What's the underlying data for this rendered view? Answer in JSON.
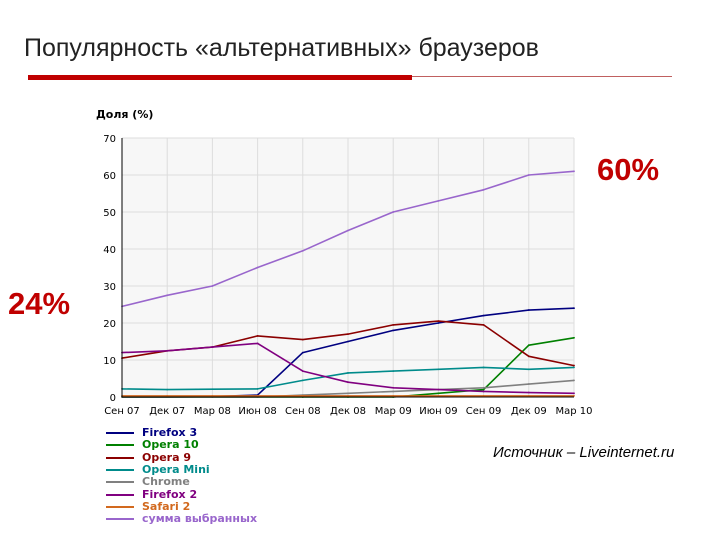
{
  "slide": {
    "title": "Популярность «альтернативных» браузеров",
    "callout_left": "24%",
    "callout_right": "60%",
    "source": "Источник – Liveinternet.ru"
  },
  "colors": {
    "accent": "#c00000",
    "callout": "#c00000",
    "grid": "#dddddd",
    "plot_bg": "#f7f7f7"
  },
  "chart_data": {
    "type": "line",
    "ylabel": "Доля (%)",
    "xlabel": "",
    "ylim": [
      0,
      70
    ],
    "yticks": [
      0,
      10,
      20,
      30,
      40,
      50,
      60,
      70
    ],
    "grid": true,
    "legend_position": "bottom",
    "x": [
      "Сен 07",
      "Дек 07",
      "Мар 08",
      "Июн 08",
      "Сен 08",
      "Дек 08",
      "Мар 09",
      "Июн 09",
      "Сен 09",
      "Дек 09",
      "Мар 10"
    ],
    "series": [
      {
        "name": "Firefox 3",
        "color": "#000080",
        "values": [
          0,
          0,
          0.1,
          0.5,
          12,
          15,
          18,
          20,
          22,
          23.5,
          24
        ]
      },
      {
        "name": "Opera 10",
        "color": "#008000",
        "values": [
          0,
          0,
          0,
          0,
          0,
          0,
          0,
          1,
          2,
          14,
          16
        ]
      },
      {
        "name": "Opera 9",
        "color": "#8b0000",
        "values": [
          10.5,
          12.5,
          13.5,
          16.5,
          15.5,
          17,
          19.5,
          20.5,
          19.5,
          11,
          8.5
        ]
      },
      {
        "name": "Opera Mini",
        "color": "#008b8b",
        "values": [
          2.2,
          2,
          2.1,
          2.2,
          4.5,
          6.5,
          7,
          7.5,
          8,
          7.5,
          8
        ]
      },
      {
        "name": "Chrome",
        "color": "#808080",
        "values": [
          0,
          0,
          0,
          0,
          0.5,
          1,
          1.5,
          2,
          2.5,
          3.5,
          4.5
        ]
      },
      {
        "name": "Firefox 2",
        "color": "#800080",
        "values": [
          12,
          12.5,
          13.5,
          14.5,
          7,
          4,
          2.5,
          2,
          1.5,
          1.2,
          1
        ]
      },
      {
        "name": "Safari 2",
        "color": "#d2691e",
        "values": [
          0.3,
          0.3,
          0.3,
          0.3,
          0.3,
          0.3,
          0.3,
          0.3,
          0.3,
          0.3,
          0.3
        ]
      },
      {
        "name": "сумма выбранных",
        "color": "#9966cc",
        "values": [
          24.5,
          27.5,
          30,
          35,
          39.5,
          45,
          50,
          53,
          56,
          60,
          61
        ]
      }
    ]
  }
}
